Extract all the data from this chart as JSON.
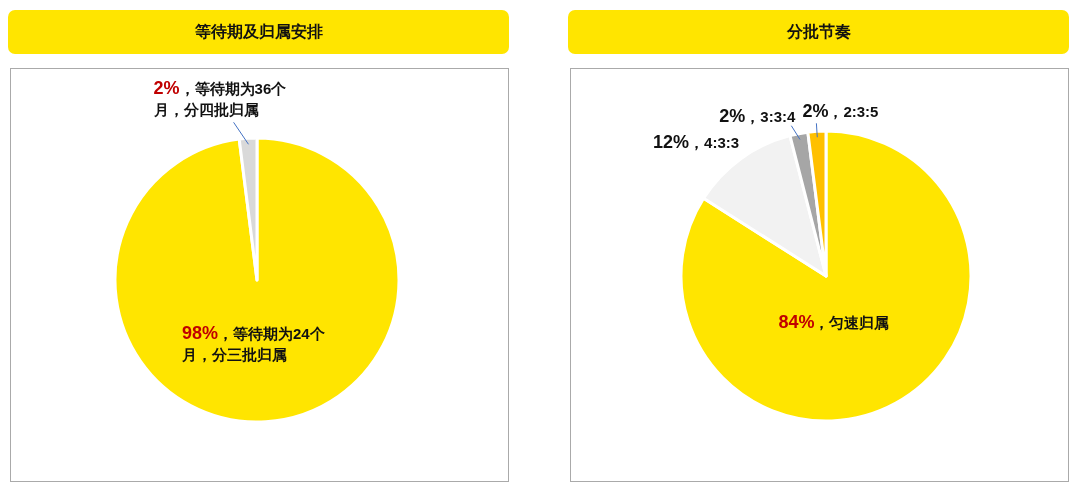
{
  "chart_data": [
    {
      "type": "pie",
      "title": "等待期及归属安排",
      "categories": [
        "，等待期为24个月，分三批归属",
        "，等待期为36个月，分四批归属"
      ],
      "values": [
        98,
        2
      ],
      "value_labels": [
        "98%",
        "2%"
      ],
      "colors": [
        "#ffe500",
        "#d9d9d9"
      ]
    },
    {
      "type": "pie",
      "title": "分批节奏",
      "categories": [
        "，匀速归属",
        "，4:3:3",
        "，3:3:4",
        "，2:3:5"
      ],
      "values": [
        84,
        12,
        2,
        2
      ],
      "value_labels": [
        "84%",
        "12%",
        "2%",
        "2%"
      ],
      "colors": [
        "#ffe500",
        "#f2f2f2",
        "#a6a6a6",
        "#ffc000"
      ]
    }
  ]
}
